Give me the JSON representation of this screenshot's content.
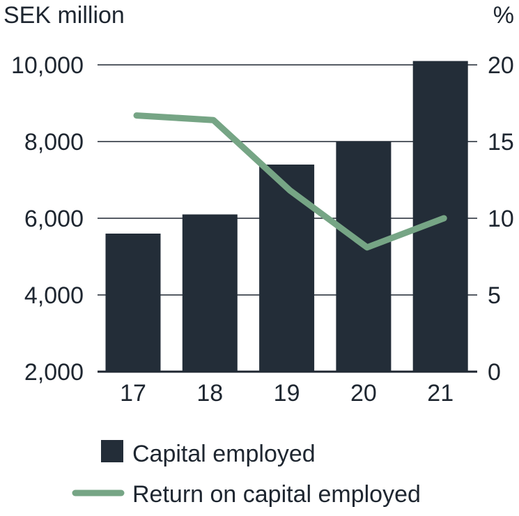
{
  "chart_data": {
    "type": "bar",
    "categories": [
      "17",
      "18",
      "19",
      "20",
      "21"
    ],
    "series": [
      {
        "name": "Capital employed",
        "type": "bar",
        "axis": "left",
        "values": [
          5600,
          6100,
          7400,
          8000,
          10100
        ],
        "color": "#232d38"
      },
      {
        "name": "Return on capital employed",
        "type": "line",
        "axis": "right",
        "values": [
          16.7,
          16.4,
          11.8,
          8.1,
          10.0
        ],
        "color": "#76a585"
      }
    ],
    "ylabel": "SEK million",
    "ylabel_right": "%",
    "ylim": [
      2000,
      10000
    ],
    "ylim_right": [
      0,
      20
    ],
    "yticks": [
      "2,000",
      "4,000",
      "6,000",
      "8,000",
      "10,000"
    ],
    "yticks_values": [
      2000,
      4000,
      6000,
      8000,
      10000
    ],
    "yticks_right": [
      "0",
      "5",
      "10",
      "15",
      "20"
    ],
    "yticks_right_values": [
      0,
      5,
      10,
      15,
      20
    ],
    "grid": true,
    "legend_position": "bottom"
  }
}
